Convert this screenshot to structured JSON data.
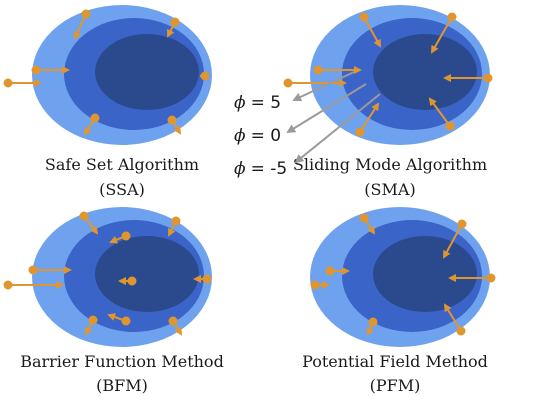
{
  "colors": {
    "outer": "#6ea2ee",
    "middle": "#3a64c8",
    "inner": "#2b4a8e",
    "arrow": "#e0962e",
    "phi_line": "#9a9a9a"
  },
  "panels": [
    {
      "key": "ssa",
      "name": "Safe Set Algorithm",
      "abbr": "(SSA)",
      "arrows": "outward_onto_safe_set"
    },
    {
      "key": "sma",
      "name": "Sliding Mode Algorithm",
      "abbr": "(SMA)",
      "arrows": "inward_to_inner_set"
    },
    {
      "key": "bfm",
      "name": "Barrier Function Method",
      "abbr": "(BFM)",
      "arrows": "mixed_barrier"
    },
    {
      "key": "pfm",
      "name": "Potential Field Method",
      "abbr": "(PFM)",
      "arrows": "inward_potential_field"
    }
  ],
  "phi_labels": [
    {
      "symbol": "ϕ",
      "text": "= 5"
    },
    {
      "symbol": "ϕ",
      "text": "= 0"
    },
    {
      "symbol": "ϕ",
      "text": "= -5"
    }
  ]
}
